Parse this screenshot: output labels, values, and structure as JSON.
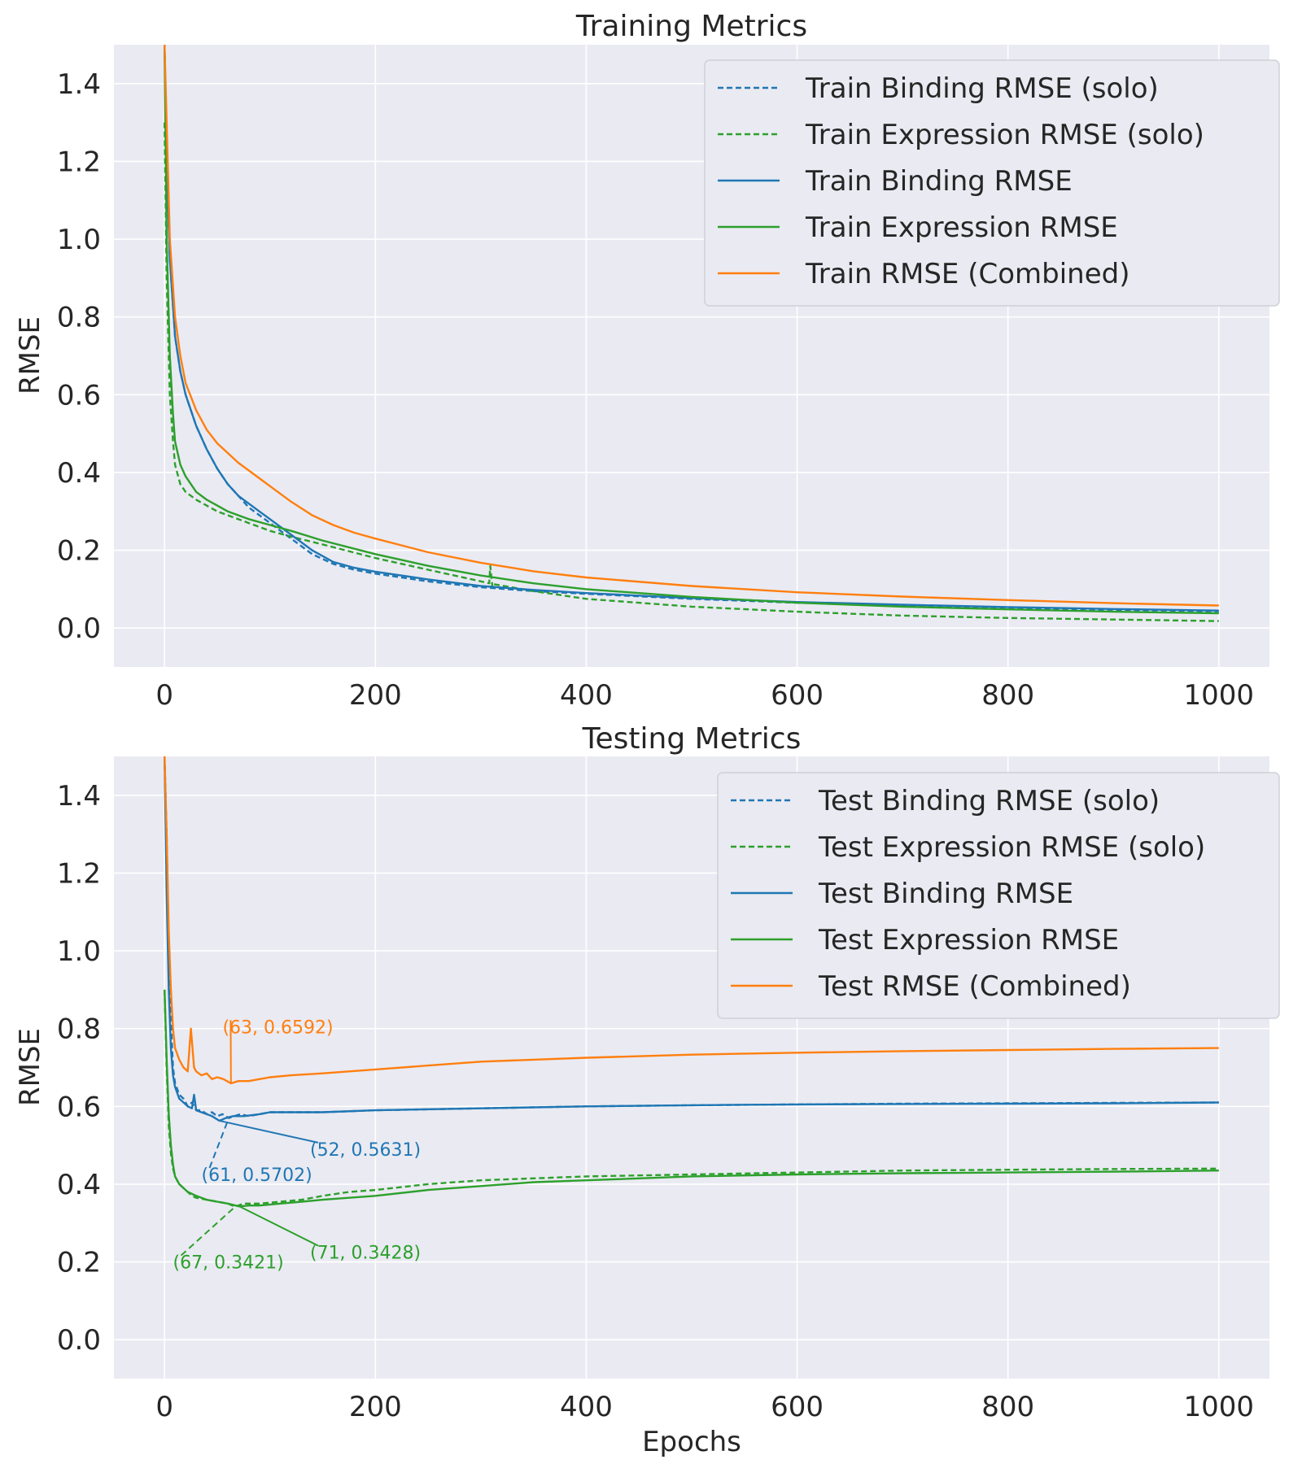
{
  "figure": {
    "xlabel": "Epochs",
    "colors": {
      "binding": "#1f77b4",
      "expression": "#2ca02c",
      "combined": "#ff7f0e",
      "panel_bg": "#eaeaf2",
      "grid": "#ffffff",
      "text": "#262626"
    }
  },
  "chart_data": [
    {
      "type": "line",
      "title": "Training Metrics",
      "xlabel": "",
      "ylabel": "RMSE",
      "xlim": [
        -48,
        1048
      ],
      "ylim": [
        -0.1,
        1.5
      ],
      "xticks": [
        0,
        200,
        400,
        600,
        800,
        1000
      ],
      "xtick_labels": [
        "0",
        "200",
        "400",
        "600",
        "800",
        "1000"
      ],
      "yticks": [
        0.0,
        0.2,
        0.4,
        0.6,
        0.8,
        1.0,
        1.2,
        1.4
      ],
      "ytick_labels": [
        "0.0",
        "0.2",
        "0.4",
        "0.6",
        "0.8",
        "1.0",
        "1.2",
        "1.4"
      ],
      "grid": true,
      "legend_position": "top-right",
      "series": [
        {
          "name": "Train Binding RMSE (solo)",
          "color": "#1f77b4",
          "style": "dashed",
          "x": [
            0,
            2,
            5,
            10,
            15,
            20,
            30,
            40,
            50,
            60,
            70,
            80,
            90,
            100,
            120,
            140,
            160,
            180,
            200,
            250,
            300,
            350,
            400,
            500,
            600,
            700,
            800,
            900,
            1000
          ],
          "y": [
            1.5,
            1.2,
            0.95,
            0.75,
            0.66,
            0.6,
            0.52,
            0.46,
            0.41,
            0.37,
            0.34,
            0.31,
            0.29,
            0.27,
            0.23,
            0.19,
            0.165,
            0.15,
            0.14,
            0.12,
            0.105,
            0.095,
            0.088,
            0.075,
            0.065,
            0.058,
            0.052,
            0.047,
            0.043
          ]
        },
        {
          "name": "Train Expression RMSE (solo)",
          "color": "#2ca02c",
          "style": "dashed",
          "x": [
            0,
            2,
            5,
            8,
            10,
            15,
            20,
            30,
            40,
            50,
            60,
            80,
            100,
            120,
            150,
            200,
            250,
            300,
            308,
            309,
            311,
            312,
            350,
            400,
            500,
            600,
            700,
            800,
            900,
            1000
          ],
          "y": [
            1.3,
            0.9,
            0.6,
            0.48,
            0.42,
            0.37,
            0.35,
            0.33,
            0.315,
            0.3,
            0.29,
            0.27,
            0.25,
            0.235,
            0.215,
            0.18,
            0.15,
            0.12,
            0.115,
            0.16,
            0.105,
            0.113,
            0.095,
            0.075,
            0.055,
            0.042,
            0.032,
            0.026,
            0.022,
            0.018
          ]
        },
        {
          "name": "Train Binding RMSE",
          "color": "#1f77b4",
          "style": "solid",
          "x": [
            0,
            2,
            5,
            10,
            15,
            20,
            30,
            40,
            50,
            60,
            70,
            80,
            90,
            100,
            120,
            140,
            160,
            180,
            200,
            250,
            300,
            350,
            400,
            500,
            600,
            700,
            800,
            900,
            1000
          ],
          "y": [
            1.5,
            1.2,
            0.95,
            0.75,
            0.66,
            0.6,
            0.52,
            0.46,
            0.41,
            0.37,
            0.34,
            0.32,
            0.3,
            0.28,
            0.24,
            0.2,
            0.17,
            0.155,
            0.145,
            0.125,
            0.108,
            0.098,
            0.09,
            0.077,
            0.067,
            0.06,
            0.054,
            0.049,
            0.045
          ]
        },
        {
          "name": "Train Expression RMSE",
          "color": "#2ca02c",
          "style": "solid",
          "x": [
            0,
            2,
            5,
            8,
            10,
            15,
            20,
            30,
            40,
            50,
            60,
            80,
            100,
            120,
            150,
            200,
            250,
            300,
            350,
            400,
            500,
            600,
            700,
            800,
            900,
            1000
          ],
          "y": [
            1.5,
            1.0,
            0.7,
            0.55,
            0.48,
            0.42,
            0.39,
            0.35,
            0.33,
            0.315,
            0.3,
            0.28,
            0.265,
            0.25,
            0.225,
            0.19,
            0.16,
            0.135,
            0.115,
            0.1,
            0.08,
            0.065,
            0.055,
            0.048,
            0.042,
            0.038
          ]
        },
        {
          "name": "Train RMSE (Combined)",
          "color": "#ff7f0e",
          "style": "solid",
          "x": [
            0,
            2,
            5,
            10,
            15,
            20,
            30,
            40,
            50,
            60,
            70,
            80,
            90,
            100,
            120,
            140,
            160,
            180,
            200,
            250,
            300,
            350,
            400,
            500,
            600,
            700,
            800,
            900,
            1000
          ],
          "y": [
            1.5,
            1.3,
            1.0,
            0.8,
            0.7,
            0.63,
            0.56,
            0.51,
            0.475,
            0.45,
            0.425,
            0.405,
            0.385,
            0.365,
            0.325,
            0.29,
            0.265,
            0.245,
            0.23,
            0.195,
            0.168,
            0.146,
            0.13,
            0.108,
            0.092,
            0.081,
            0.072,
            0.064,
            0.058
          ]
        }
      ],
      "annotations": []
    },
    {
      "type": "line",
      "title": "Testing Metrics",
      "xlabel": "Epochs",
      "ylabel": "RMSE",
      "xlim": [
        -48,
        1048
      ],
      "ylim": [
        -0.1,
        1.5
      ],
      "xticks": [
        0,
        200,
        400,
        600,
        800,
        1000
      ],
      "xtick_labels": [
        "0",
        "200",
        "400",
        "600",
        "800",
        "1000"
      ],
      "yticks": [
        0.0,
        0.2,
        0.4,
        0.6,
        0.8,
        1.0,
        1.2,
        1.4
      ],
      "ytick_labels": [
        "0.0",
        "0.2",
        "0.4",
        "0.6",
        "0.8",
        "1.0",
        "1.2",
        "1.4"
      ],
      "grid": true,
      "legend_position": "top-right",
      "series": [
        {
          "name": "Test Binding RMSE (solo)",
          "color": "#1f77b4",
          "style": "dashed",
          "x": [
            0,
            2,
            4,
            6,
            8,
            10,
            14,
            18,
            22,
            26,
            30,
            35,
            40,
            45,
            50,
            55,
            61,
            66,
            72,
            80,
            90,
            100,
            120,
            150,
            200,
            300,
            400,
            500,
            600,
            700,
            800,
            900,
            1000
          ],
          "y": [
            1.5,
            1.3,
            1.0,
            0.82,
            0.7,
            0.66,
            0.63,
            0.62,
            0.6,
            0.61,
            0.59,
            0.59,
            0.58,
            0.585,
            0.575,
            0.58,
            0.5702,
            0.575,
            0.58,
            0.575,
            0.58,
            0.585,
            0.585,
            0.585,
            0.59,
            0.595,
            0.6,
            0.603,
            0.605,
            0.607,
            0.608,
            0.609,
            0.61
          ]
        },
        {
          "name": "Test Expression RMSE (solo)",
          "color": "#2ca02c",
          "style": "dashed",
          "x": [
            0,
            2,
            4,
            6,
            8,
            10,
            14,
            18,
            22,
            26,
            30,
            40,
            50,
            60,
            67,
            75,
            90,
            110,
            130,
            150,
            175,
            200,
            250,
            300,
            350,
            400,
            500,
            600,
            700,
            800,
            900,
            1000
          ],
          "y": [
            0.9,
            0.7,
            0.55,
            0.48,
            0.44,
            0.42,
            0.4,
            0.39,
            0.38,
            0.37,
            0.365,
            0.36,
            0.355,
            0.35,
            0.3421,
            0.35,
            0.35,
            0.355,
            0.36,
            0.37,
            0.38,
            0.385,
            0.4,
            0.41,
            0.415,
            0.42,
            0.425,
            0.43,
            0.435,
            0.437,
            0.439,
            0.44
          ]
        },
        {
          "name": "Test Binding RMSE",
          "color": "#1f77b4",
          "style": "solid",
          "x": [
            0,
            2,
            4,
            6,
            8,
            10,
            14,
            18,
            22,
            26,
            28,
            30,
            35,
            40,
            45,
            52,
            58,
            65,
            75,
            90,
            100,
            120,
            150,
            200,
            300,
            400,
            500,
            600,
            700,
            800,
            900,
            1000
          ],
          "y": [
            1.5,
            1.15,
            0.9,
            0.75,
            0.68,
            0.65,
            0.62,
            0.61,
            0.6,
            0.595,
            0.63,
            0.59,
            0.585,
            0.58,
            0.575,
            0.5631,
            0.57,
            0.575,
            0.575,
            0.58,
            0.585,
            0.585,
            0.585,
            0.59,
            0.595,
            0.6,
            0.603,
            0.605,
            0.606,
            0.607,
            0.608,
            0.61
          ]
        },
        {
          "name": "Test Expression RMSE",
          "color": "#2ca02c",
          "style": "solid",
          "x": [
            0,
            2,
            4,
            6,
            8,
            10,
            14,
            18,
            22,
            26,
            30,
            40,
            50,
            60,
            71,
            80,
            90,
            110,
            130,
            150,
            175,
            200,
            250,
            300,
            350,
            400,
            500,
            600,
            700,
            800,
            900,
            1000
          ],
          "y": [
            0.9,
            0.72,
            0.58,
            0.5,
            0.45,
            0.42,
            0.4,
            0.39,
            0.38,
            0.375,
            0.37,
            0.36,
            0.355,
            0.35,
            0.3428,
            0.345,
            0.345,
            0.35,
            0.355,
            0.36,
            0.365,
            0.37,
            0.385,
            0.395,
            0.405,
            0.41,
            0.42,
            0.425,
            0.428,
            0.43,
            0.432,
            0.435
          ]
        },
        {
          "name": "Test RMSE (Combined)",
          "color": "#ff7f0e",
          "style": "solid",
          "x": [
            0,
            2,
            4,
            6,
            8,
            10,
            14,
            18,
            22,
            25,
            28,
            30,
            35,
            40,
            45,
            50,
            56,
            63,
            70,
            80,
            90,
            100,
            120,
            150,
            200,
            250,
            300,
            400,
            500,
            600,
            700,
            800,
            900,
            1000
          ],
          "y": [
            1.5,
            1.3,
            1.05,
            0.9,
            0.8,
            0.75,
            0.72,
            0.7,
            0.69,
            0.8,
            0.7,
            0.69,
            0.68,
            0.685,
            0.67,
            0.675,
            0.67,
            0.6592,
            0.665,
            0.665,
            0.67,
            0.675,
            0.68,
            0.685,
            0.695,
            0.705,
            0.715,
            0.725,
            0.733,
            0.738,
            0.742,
            0.745,
            0.748,
            0.75
          ]
        }
      ],
      "annotations": [
        {
          "text": "(63, 0.6592)",
          "color": "#ff7f0e",
          "style": "solid",
          "point": [
            63,
            0.6592
          ],
          "label_at": [
            55,
            0.805
          ]
        },
        {
          "text": "(52, 0.5631)",
          "color": "#1f77b4",
          "style": "solid",
          "point": [
            52,
            0.5631
          ],
          "label_at": [
            138,
            0.49
          ]
        },
        {
          "text": "(61, 0.5702)",
          "color": "#1f77b4",
          "style": "dashed",
          "point": [
            61,
            0.5702
          ],
          "label_at": [
            35,
            0.425
          ]
        },
        {
          "text": "(71, 0.3428)",
          "color": "#2ca02c",
          "style": "solid",
          "point": [
            71,
            0.3428
          ],
          "label_at": [
            138,
            0.225
          ]
        },
        {
          "text": "(67, 0.3421)",
          "color": "#2ca02c",
          "style": "dashed",
          "point": [
            67,
            0.3421
          ],
          "label_at": [
            8,
            0.2
          ]
        }
      ]
    }
  ]
}
